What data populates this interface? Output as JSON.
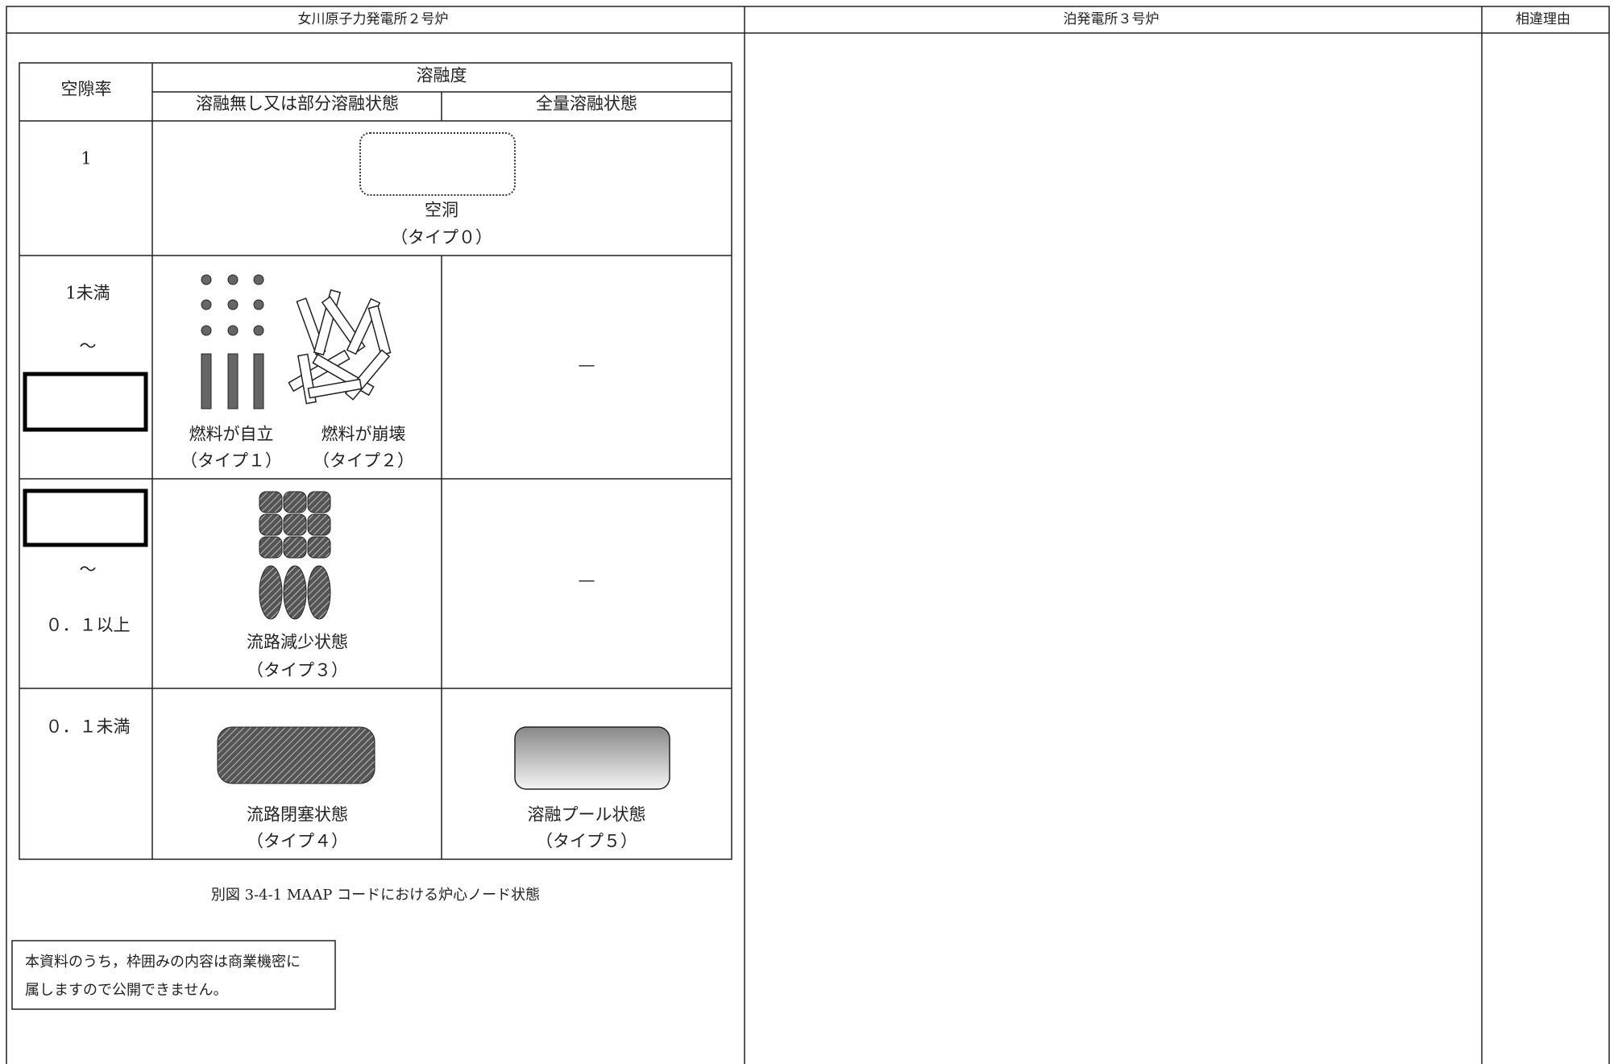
{
  "header": {
    "columns": [
      "女川原子力発電所２号炉",
      "泊発電所３号炉",
      "相違理由"
    ]
  },
  "figure": {
    "header": {
      "void_fraction": "空隙率",
      "melt_degree": "溶融度",
      "partial": "溶融無し又は部分溶融状態",
      "full": "全量溶融状態"
    },
    "rows": [
      {
        "void": [
          "1"
        ],
        "states": [
          {
            "label": "空洞",
            "type": "（タイプ０）"
          }
        ]
      },
      {
        "void": [
          "1未満",
          "～"
        ],
        "states": [
          {
            "label": "燃料が自立",
            "type": "（タイプ１）"
          },
          {
            "label": "燃料が崩壊",
            "type": "（タイプ２）"
          }
        ],
        "full": "—"
      },
      {
        "void": [
          "～",
          "０．１以上"
        ],
        "states": [
          {
            "label": "流路減少状態",
            "type": "（タイプ３）"
          }
        ],
        "full": "—"
      },
      {
        "void": [
          "０．１未満"
        ],
        "states": [
          {
            "label": "流路閉塞状態",
            "type": "（タイプ４）"
          },
          {
            "label": "溶融プール状態",
            "type": "（タイプ５）"
          }
        ]
      }
    ],
    "caption": "別図 3-4-1 MAAP コードにおける炉心ノード状態"
  },
  "notice": [
    "本資料のうち，枠囲みの内容は商業機密に",
    "属しますので公開できません。"
  ]
}
